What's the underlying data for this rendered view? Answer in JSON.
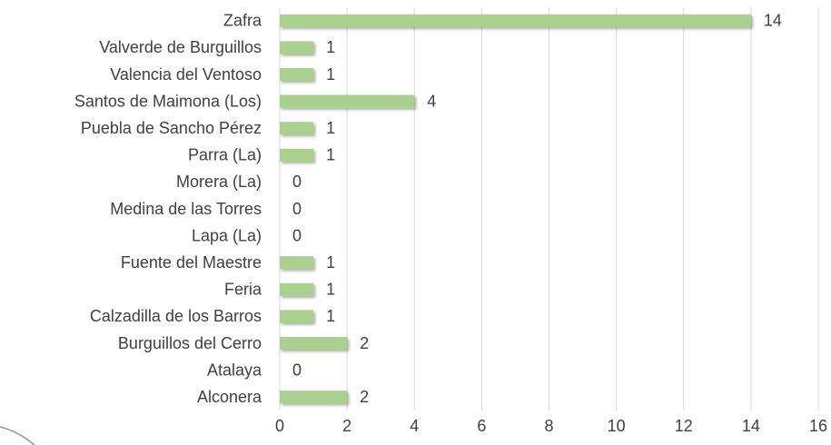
{
  "chart_data": {
    "type": "bar",
    "orientation": "horizontal",
    "categories": [
      "Zafra",
      "Valverde de Burguillos",
      "Valencia del Ventoso",
      "Santos de Maimona (Los)",
      "Puebla de Sancho Pérez",
      "Parra (La)",
      "Morera (La)",
      "Medina de las Torres",
      "Lapa (La)",
      "Fuente del Maestre",
      "Feria",
      "Calzadilla de los Barros",
      "Burguillos del Cerro",
      "Atalaya",
      "Alconera"
    ],
    "values": [
      14,
      1,
      1,
      4,
      1,
      1,
      0,
      0,
      0,
      1,
      1,
      1,
      2,
      0,
      2
    ],
    "color": "#a9d08e",
    "xlim": [
      0,
      16
    ],
    "xticks": [
      0,
      2,
      4,
      6,
      8,
      10,
      12,
      14,
      16
    ],
    "grid": true
  }
}
